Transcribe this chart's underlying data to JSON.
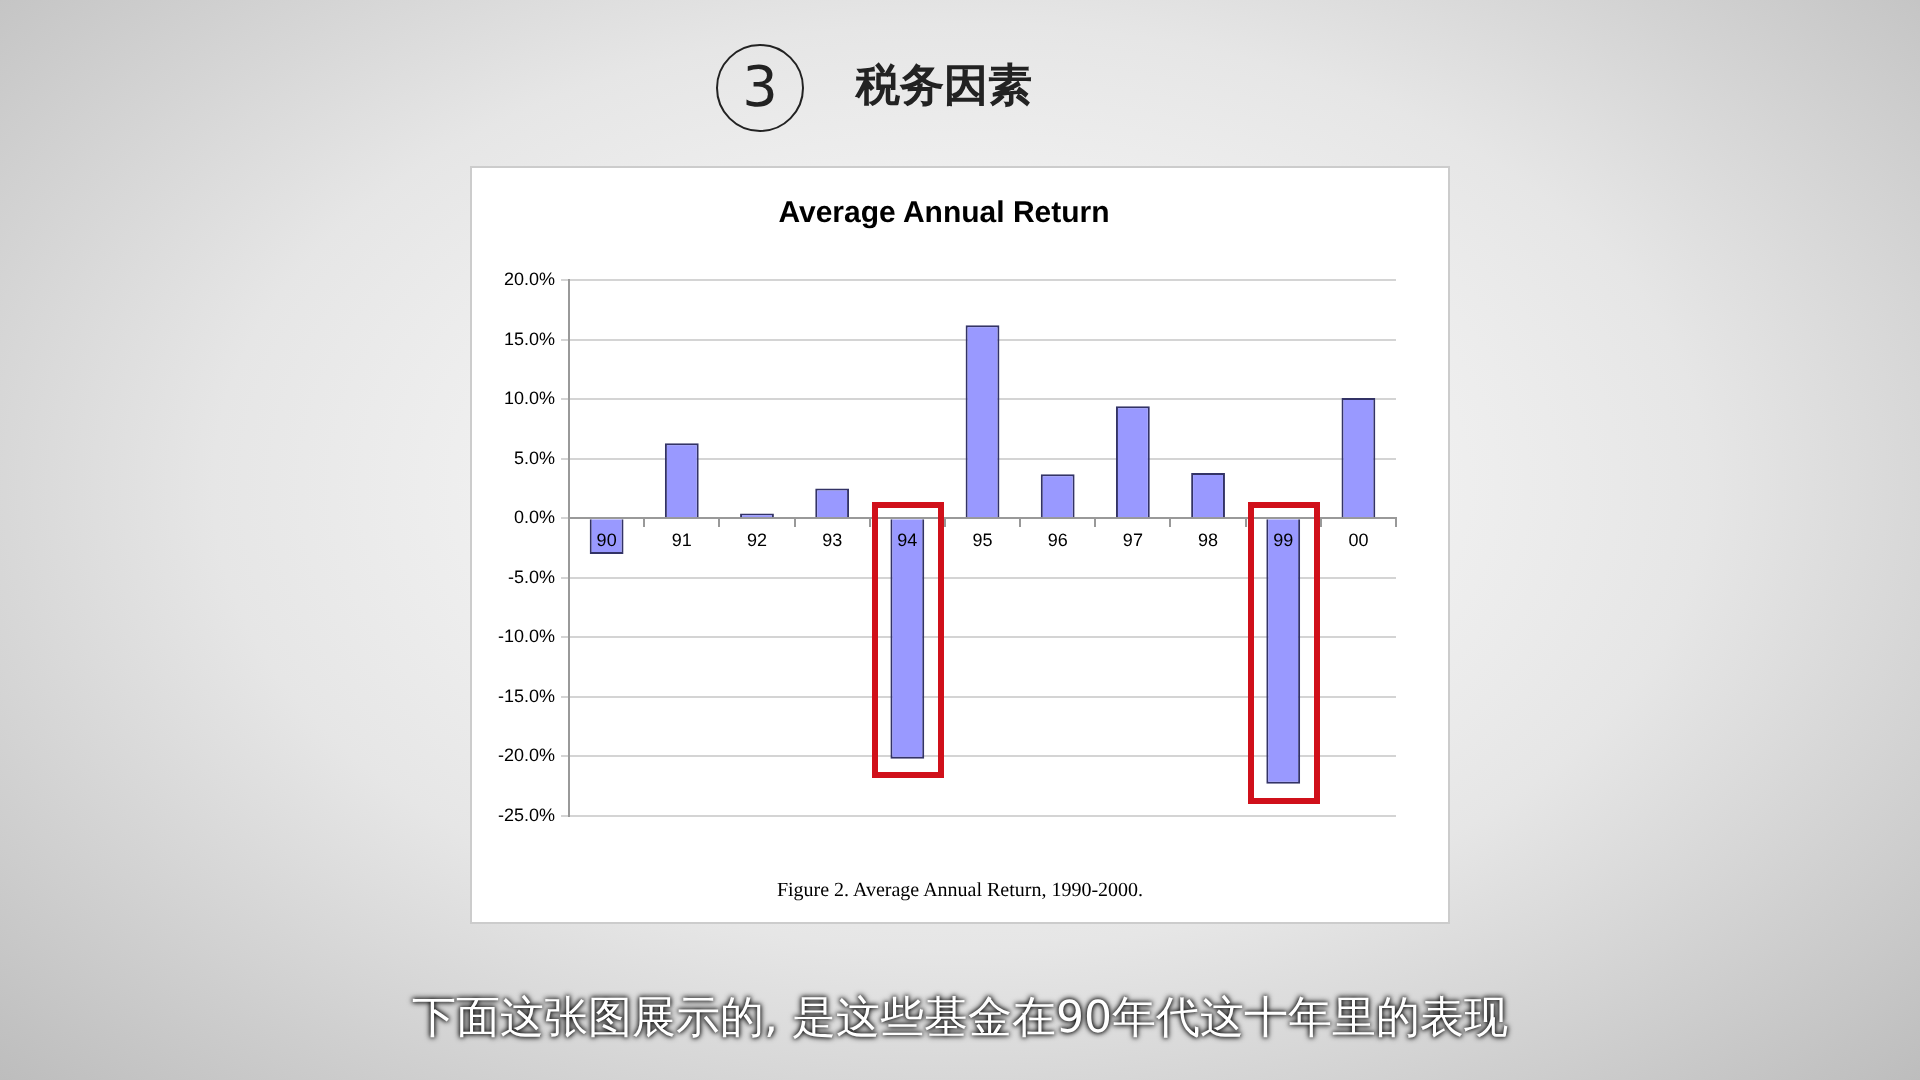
{
  "chart_data": {
    "type": "bar",
    "title": "Average Annual Return",
    "categories": [
      "90",
      "91",
      "92",
      "93",
      "94",
      "95",
      "96",
      "97",
      "98",
      "99",
      "00"
    ],
    "values": [
      -3.0,
      6.3,
      0.4,
      2.5,
      -20.2,
      16.2,
      3.7,
      9.4,
      3.8,
      -22.3,
      10.1
    ],
    "color": "#9999ff",
    "ylim": [
      -25,
      20
    ],
    "yticks": [
      {
        "value": -25,
        "label": "-25.0%"
      },
      {
        "value": -20,
        "label": "-20.0%"
      },
      {
        "value": -15,
        "label": "-15.0%"
      },
      {
        "value": -10,
        "label": "-10.0%"
      },
      {
        "value": -5,
        "label": "-5.0%"
      },
      {
        "value": 0,
        "label": "0.0%"
      },
      {
        "value": 5,
        "label": "5.0%"
      },
      {
        "value": 10,
        "label": "10.0%"
      },
      {
        "value": 15,
        "label": "15.0%"
      },
      {
        "value": 20,
        "label": "20.0%"
      }
    ],
    "grid": "y",
    "legend": false,
    "annotations": [
      "3",
      "税务因素",
      "Figure 2.  Average Annual Return, 1990-2000.",
      "下面这张图展示的, 是这些基金在90年代这十年里的表现"
    ]
  }
}
